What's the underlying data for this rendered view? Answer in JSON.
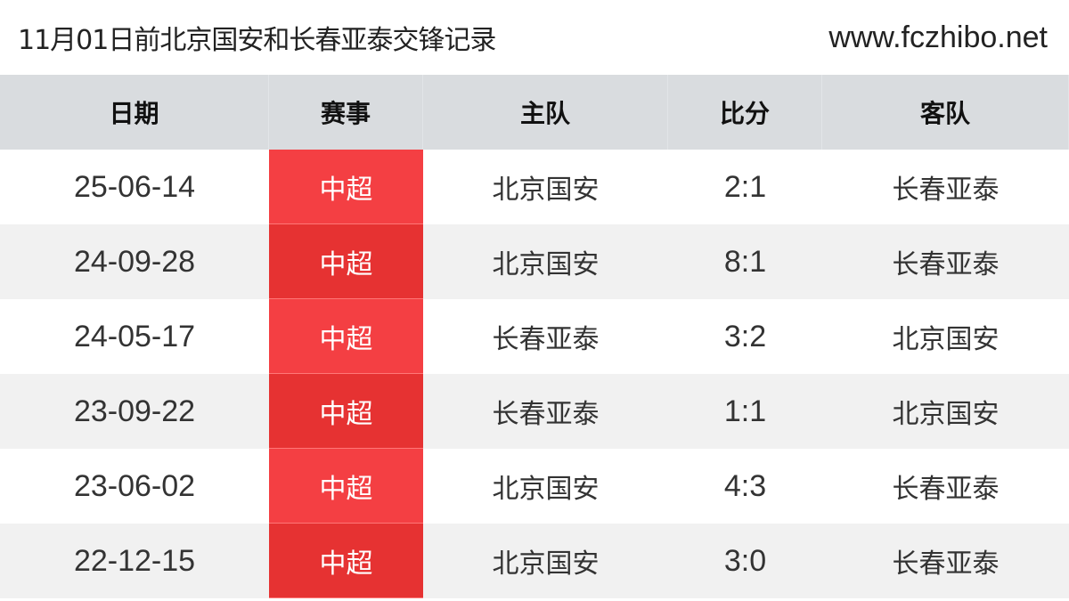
{
  "header": {
    "title": "11月01日前北京国安和长春亚泰交锋记录",
    "site": "www.fczhibo.net"
  },
  "colors": {
    "league": "#f43f43",
    "league_alt": "#e63232",
    "header_bg": "#d9dcdf"
  },
  "columns": [
    "日期",
    "赛事",
    "主队",
    "比分",
    "客队"
  ],
  "rows": [
    [
      "25-06-14",
      "中超",
      "北京国安",
      "2:1",
      "长春亚泰"
    ],
    [
      "24-09-28",
      "中超",
      "北京国安",
      "8:1",
      "长春亚泰"
    ],
    [
      "24-05-17",
      "中超",
      "长春亚泰",
      "3:2",
      "北京国安"
    ],
    [
      "23-09-22",
      "中超",
      "长春亚泰",
      "1:1",
      "北京国安"
    ],
    [
      "23-06-02",
      "中超",
      "北京国安",
      "4:3",
      "长春亚泰"
    ],
    [
      "22-12-15",
      "中超",
      "北京国安",
      "3:0",
      "长春亚泰"
    ]
  ]
}
